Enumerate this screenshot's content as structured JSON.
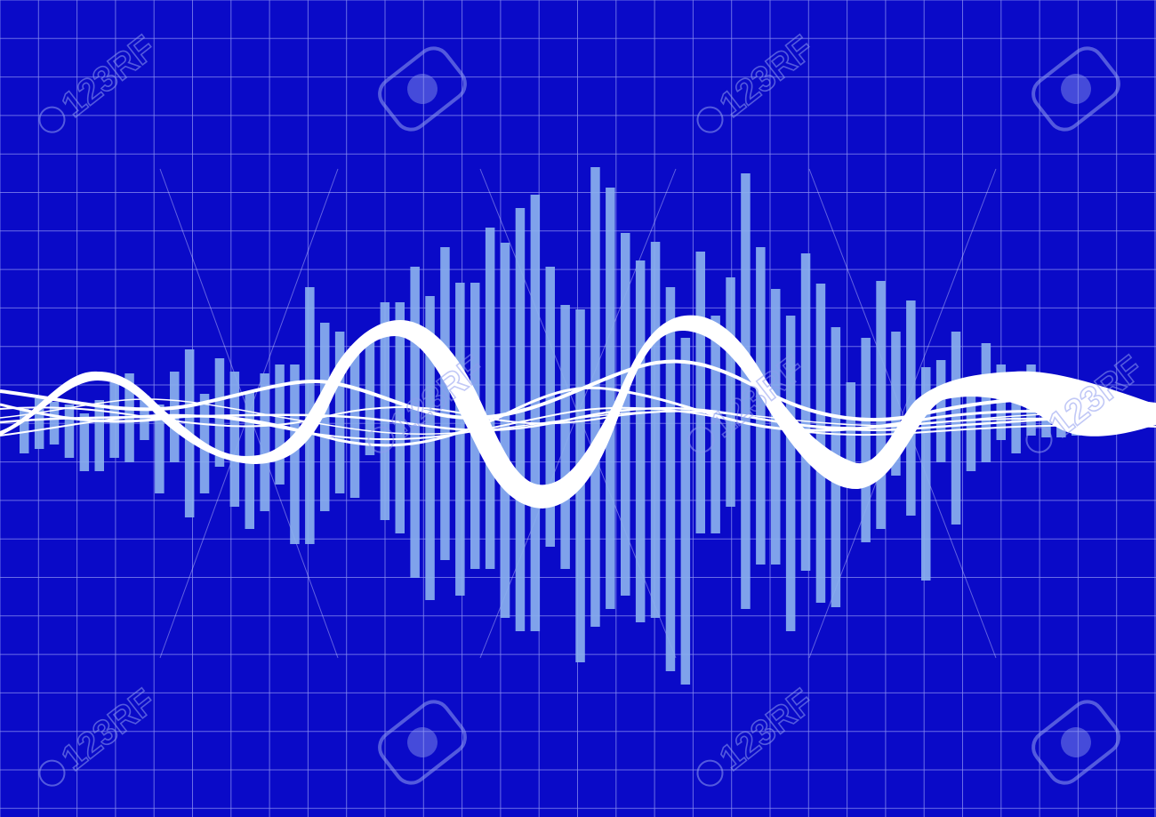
{
  "image": {
    "description_type": "abstract-sound-wave-graphic",
    "colors": {
      "background": "#0a0ac8",
      "grid": "#8a8ff0",
      "bars": "#8ab0ee",
      "waves": "#ffffff"
    }
  },
  "watermark": {
    "text": "123RF",
    "icon": "camera-aperture-icon",
    "color": "#8f9cf0"
  }
}
